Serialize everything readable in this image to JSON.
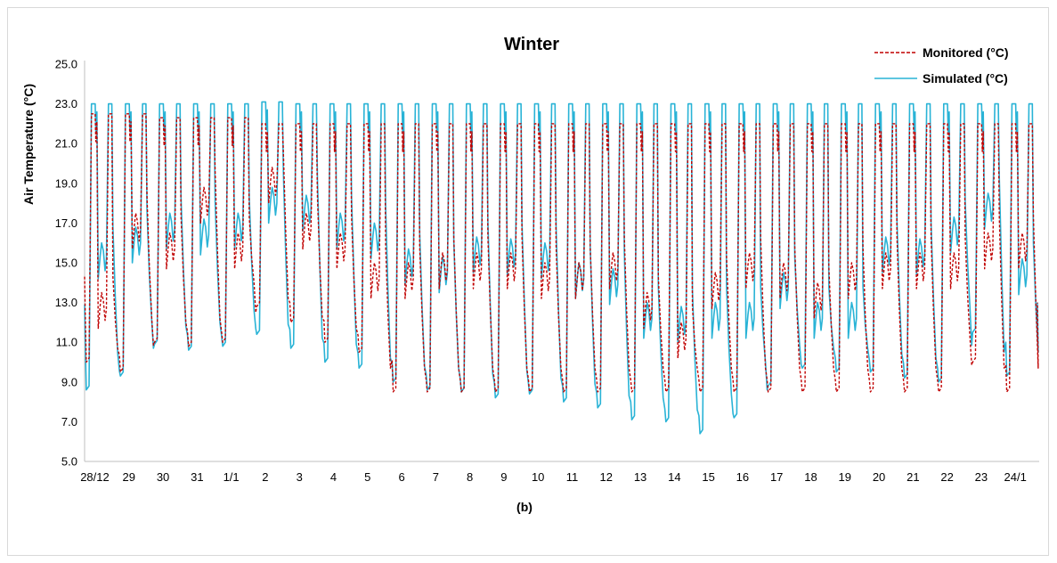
{
  "chart_data": {
    "type": "line",
    "title": "Winter",
    "xlabel": "",
    "ylabel": "Air Temperature (°C)",
    "caption": "(b)",
    "ylim": [
      5.0,
      25.0
    ],
    "yticks": [
      "5.0",
      "7.0",
      "9.0",
      "11.0",
      "13.0",
      "15.0",
      "17.0",
      "19.0",
      "21.0",
      "23.0",
      "25.0"
    ],
    "categories": [
      "28/12",
      "29",
      "30",
      "31",
      "1/1",
      "2",
      "3",
      "4",
      "5",
      "6",
      "7",
      "8",
      "9",
      "10",
      "11",
      "12",
      "13",
      "14",
      "15",
      "16",
      "17",
      "18",
      "19",
      "20",
      "21",
      "22",
      "23",
      "24/1"
    ],
    "legend_position": "top-right",
    "grid": false,
    "series": [
      {
        "name": "Monitored (°C)",
        "color": "#c00000",
        "style": "dashed",
        "lows": [
          10.0,
          9.5,
          11.0,
          10.8,
          11.0,
          12.8,
          12.0,
          11.0,
          10.5,
          8.5,
          8.5,
          8.5,
          8.5,
          8.5,
          8.5,
          8.5,
          8.5,
          8.5,
          8.5,
          8.5,
          8.5,
          8.5,
          8.5,
          8.5,
          8.5,
          8.5,
          10.0,
          8.5
        ],
        "mids": [
          13.5,
          17.5,
          16.5,
          18.8,
          16.5,
          19.8,
          17.5,
          16.5,
          15.0,
          15.0,
          15.5,
          15.5,
          15.5,
          15.0,
          15.0,
          15.5,
          13.5,
          12.0,
          14.5,
          15.5,
          15.0,
          14.0,
          15.0,
          15.5,
          15.5,
          15.5,
          16.5,
          16.5
        ],
        "highs": [
          22.5,
          22.5,
          22.3,
          22.3,
          22.3,
          22.0,
          22.0,
          22.0,
          22.0,
          22.0,
          22.0,
          22.0,
          22.0,
          22.0,
          22.0,
          22.0,
          22.0,
          22.0,
          22.0,
          22.0,
          22.0,
          22.0,
          22.0,
          22.0,
          22.0,
          22.0,
          22.0,
          22.0
        ]
      },
      {
        "name": "Simulated (°C)",
        "color": "#29b3d6",
        "style": "solid",
        "lows": [
          8.6,
          9.3,
          10.9,
          10.6,
          10.8,
          11.4,
          10.7,
          10.0,
          9.7,
          9.0,
          8.6,
          8.5,
          8.2,
          8.4,
          8.0,
          7.7,
          7.1,
          7.0,
          6.4,
          7.2,
          8.8,
          9.7,
          9.5,
          9.5,
          9.2,
          9.0,
          11.5,
          9.3
        ],
        "mids": [
          16.0,
          16.8,
          17.5,
          17.2,
          17.5,
          18.8,
          18.4,
          17.5,
          17.0,
          15.7,
          15.3,
          16.3,
          16.2,
          16.0,
          15.0,
          14.7,
          13.0,
          12.8,
          13.0,
          13.0,
          14.5,
          13.0,
          13.0,
          16.3,
          16.2,
          17.3,
          18.5,
          15.2
        ],
        "highs": [
          23.0,
          23.0,
          23.0,
          23.0,
          23.0,
          23.1,
          23.0,
          23.0,
          23.0,
          23.0,
          23.0,
          23.0,
          23.0,
          23.0,
          23.0,
          23.0,
          23.0,
          23.0,
          23.0,
          23.0,
          23.0,
          23.0,
          23.0,
          23.0,
          23.0,
          23.0,
          23.0,
          23.0
        ]
      }
    ]
  }
}
